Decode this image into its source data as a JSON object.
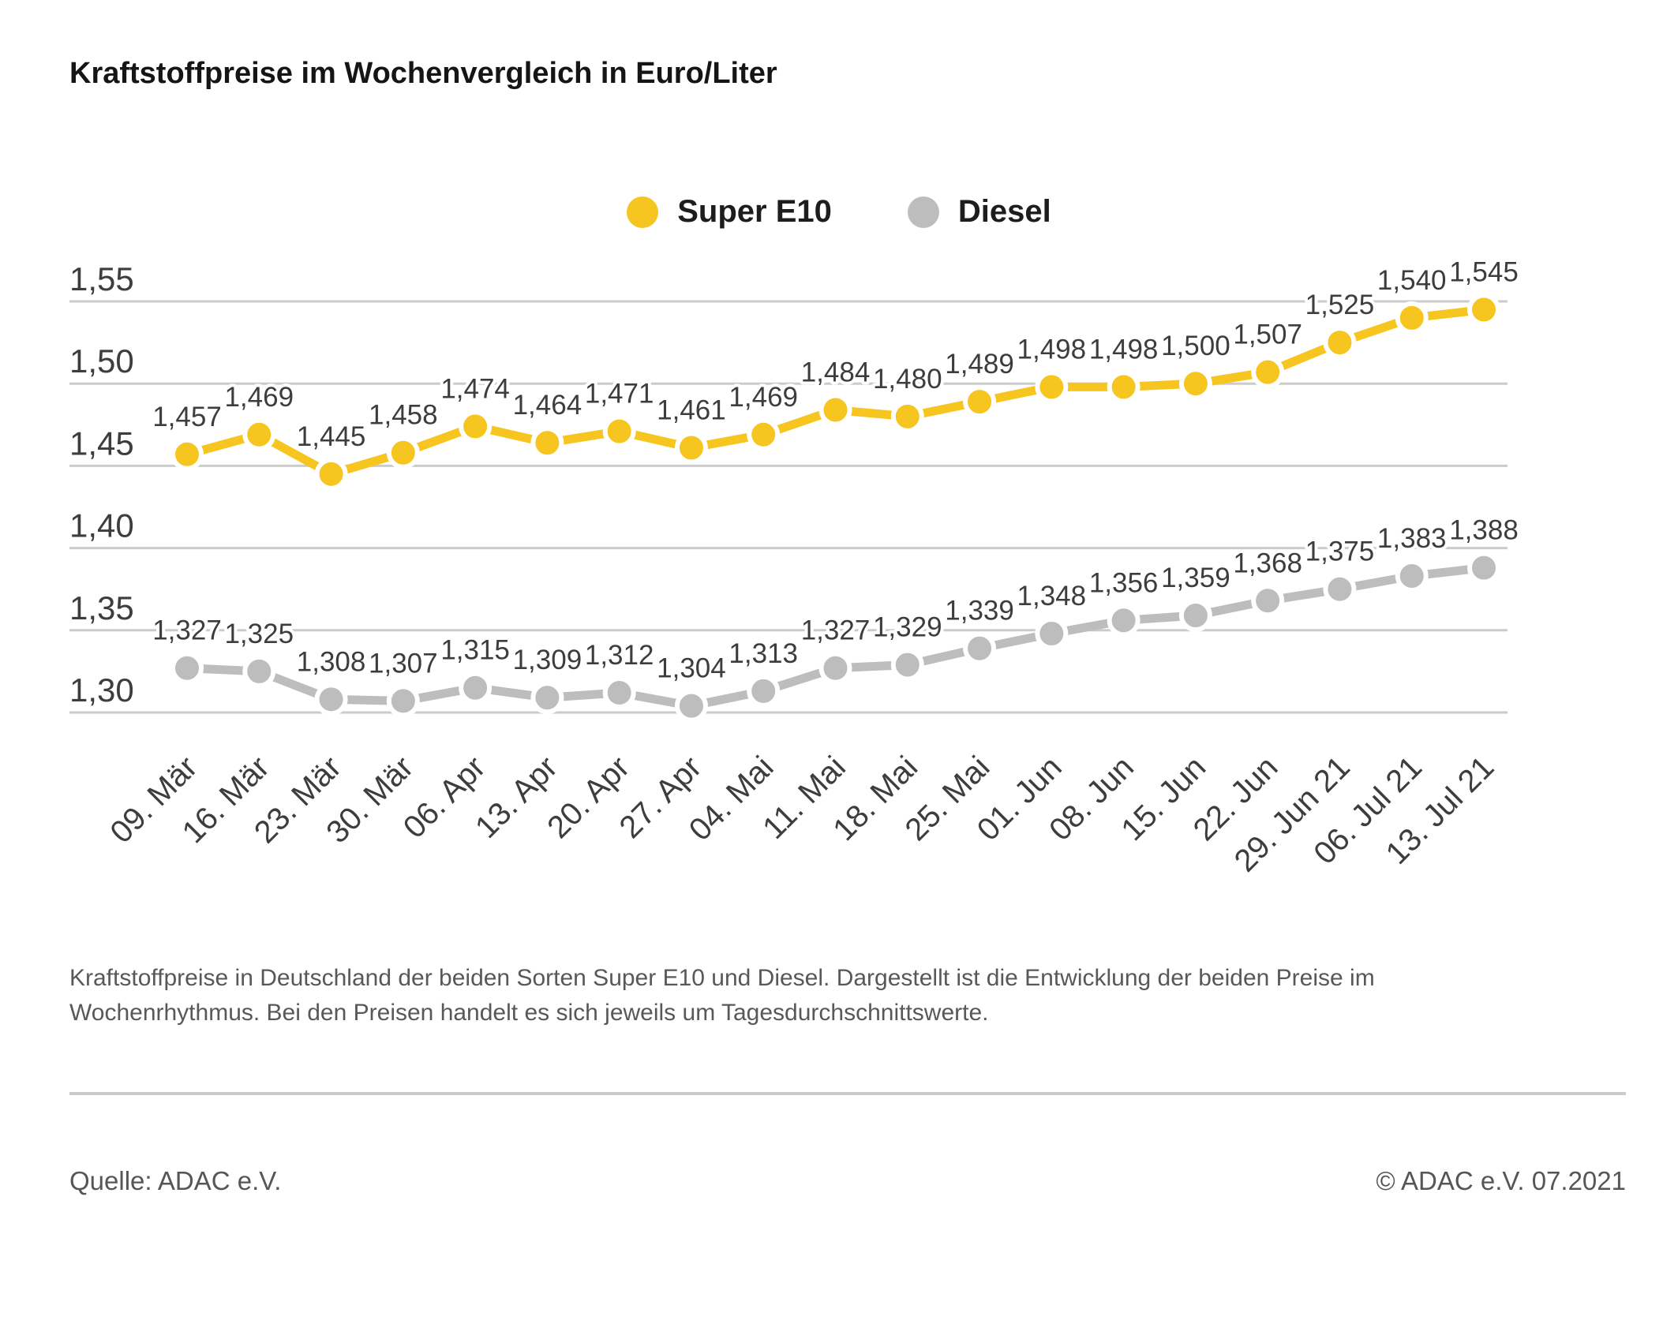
{
  "title": "Kraftstoffpreise im Wochenvergleich in Euro/Liter",
  "legend": [
    {
      "label": "Super E10",
      "color": "#F7C51F"
    },
    {
      "label": "Diesel",
      "color": "#BDBDBD"
    }
  ],
  "chart_data": {
    "type": "line",
    "title": "Kraftstoffpreise im Wochenvergleich in Euro/Liter",
    "xlabel": "",
    "ylabel": "Euro/Liter",
    "x": [
      "09. Mär",
      "16. Mär",
      "23. Mär",
      "30. Mär",
      "06. Apr",
      "13. Apr",
      "20. Apr",
      "27. Apr",
      "04. Mai",
      "11. Mai",
      "18. Mai",
      "25. Mai",
      "01. Jun",
      "08. Jun",
      "15. Jun",
      "22. Jun",
      "29. Jun 21",
      "06. Jul 21",
      "13. Jul 21"
    ],
    "series": [
      {
        "name": "Super E10",
        "color": "#F7C51F",
        "values": [
          1.457,
          1.469,
          1.445,
          1.458,
          1.474,
          1.464,
          1.471,
          1.461,
          1.469,
          1.484,
          1.48,
          1.489,
          1.498,
          1.498,
          1.5,
          1.507,
          1.525,
          1.54,
          1.545
        ]
      },
      {
        "name": "Diesel",
        "color": "#BDBDBD",
        "values": [
          1.327,
          1.325,
          1.308,
          1.307,
          1.315,
          1.309,
          1.312,
          1.304,
          1.313,
          1.327,
          1.329,
          1.339,
          1.348,
          1.356,
          1.359,
          1.368,
          1.375,
          1.383,
          1.388
        ]
      }
    ],
    "yticks": [
      1.55,
      1.5,
      1.45,
      1.4,
      1.35,
      1.3
    ],
    "ylim": [
      1.275,
      1.56
    ],
    "grid": true,
    "legend_position": "top-center",
    "value_labels": true,
    "decimal_separator": ","
  },
  "description": [
    "Kraftstoffpreise in Deutschland der beiden Sorten Super E10 und Diesel. Dargestellt ist die Entwicklung der beiden Preise im",
    "Wochenrhythmus. Bei den Preisen handelt es sich jeweils um Tagesdurchschnittswerte."
  ],
  "source": "Quelle: ADAC e.V.",
  "copyright": "© ADAC e.V. 07.2021",
  "colors": {
    "grid": "#CBCBCB",
    "tick_text": "#3D3D3D",
    "muted_text": "#58585B",
    "title_text": "#151515"
  }
}
